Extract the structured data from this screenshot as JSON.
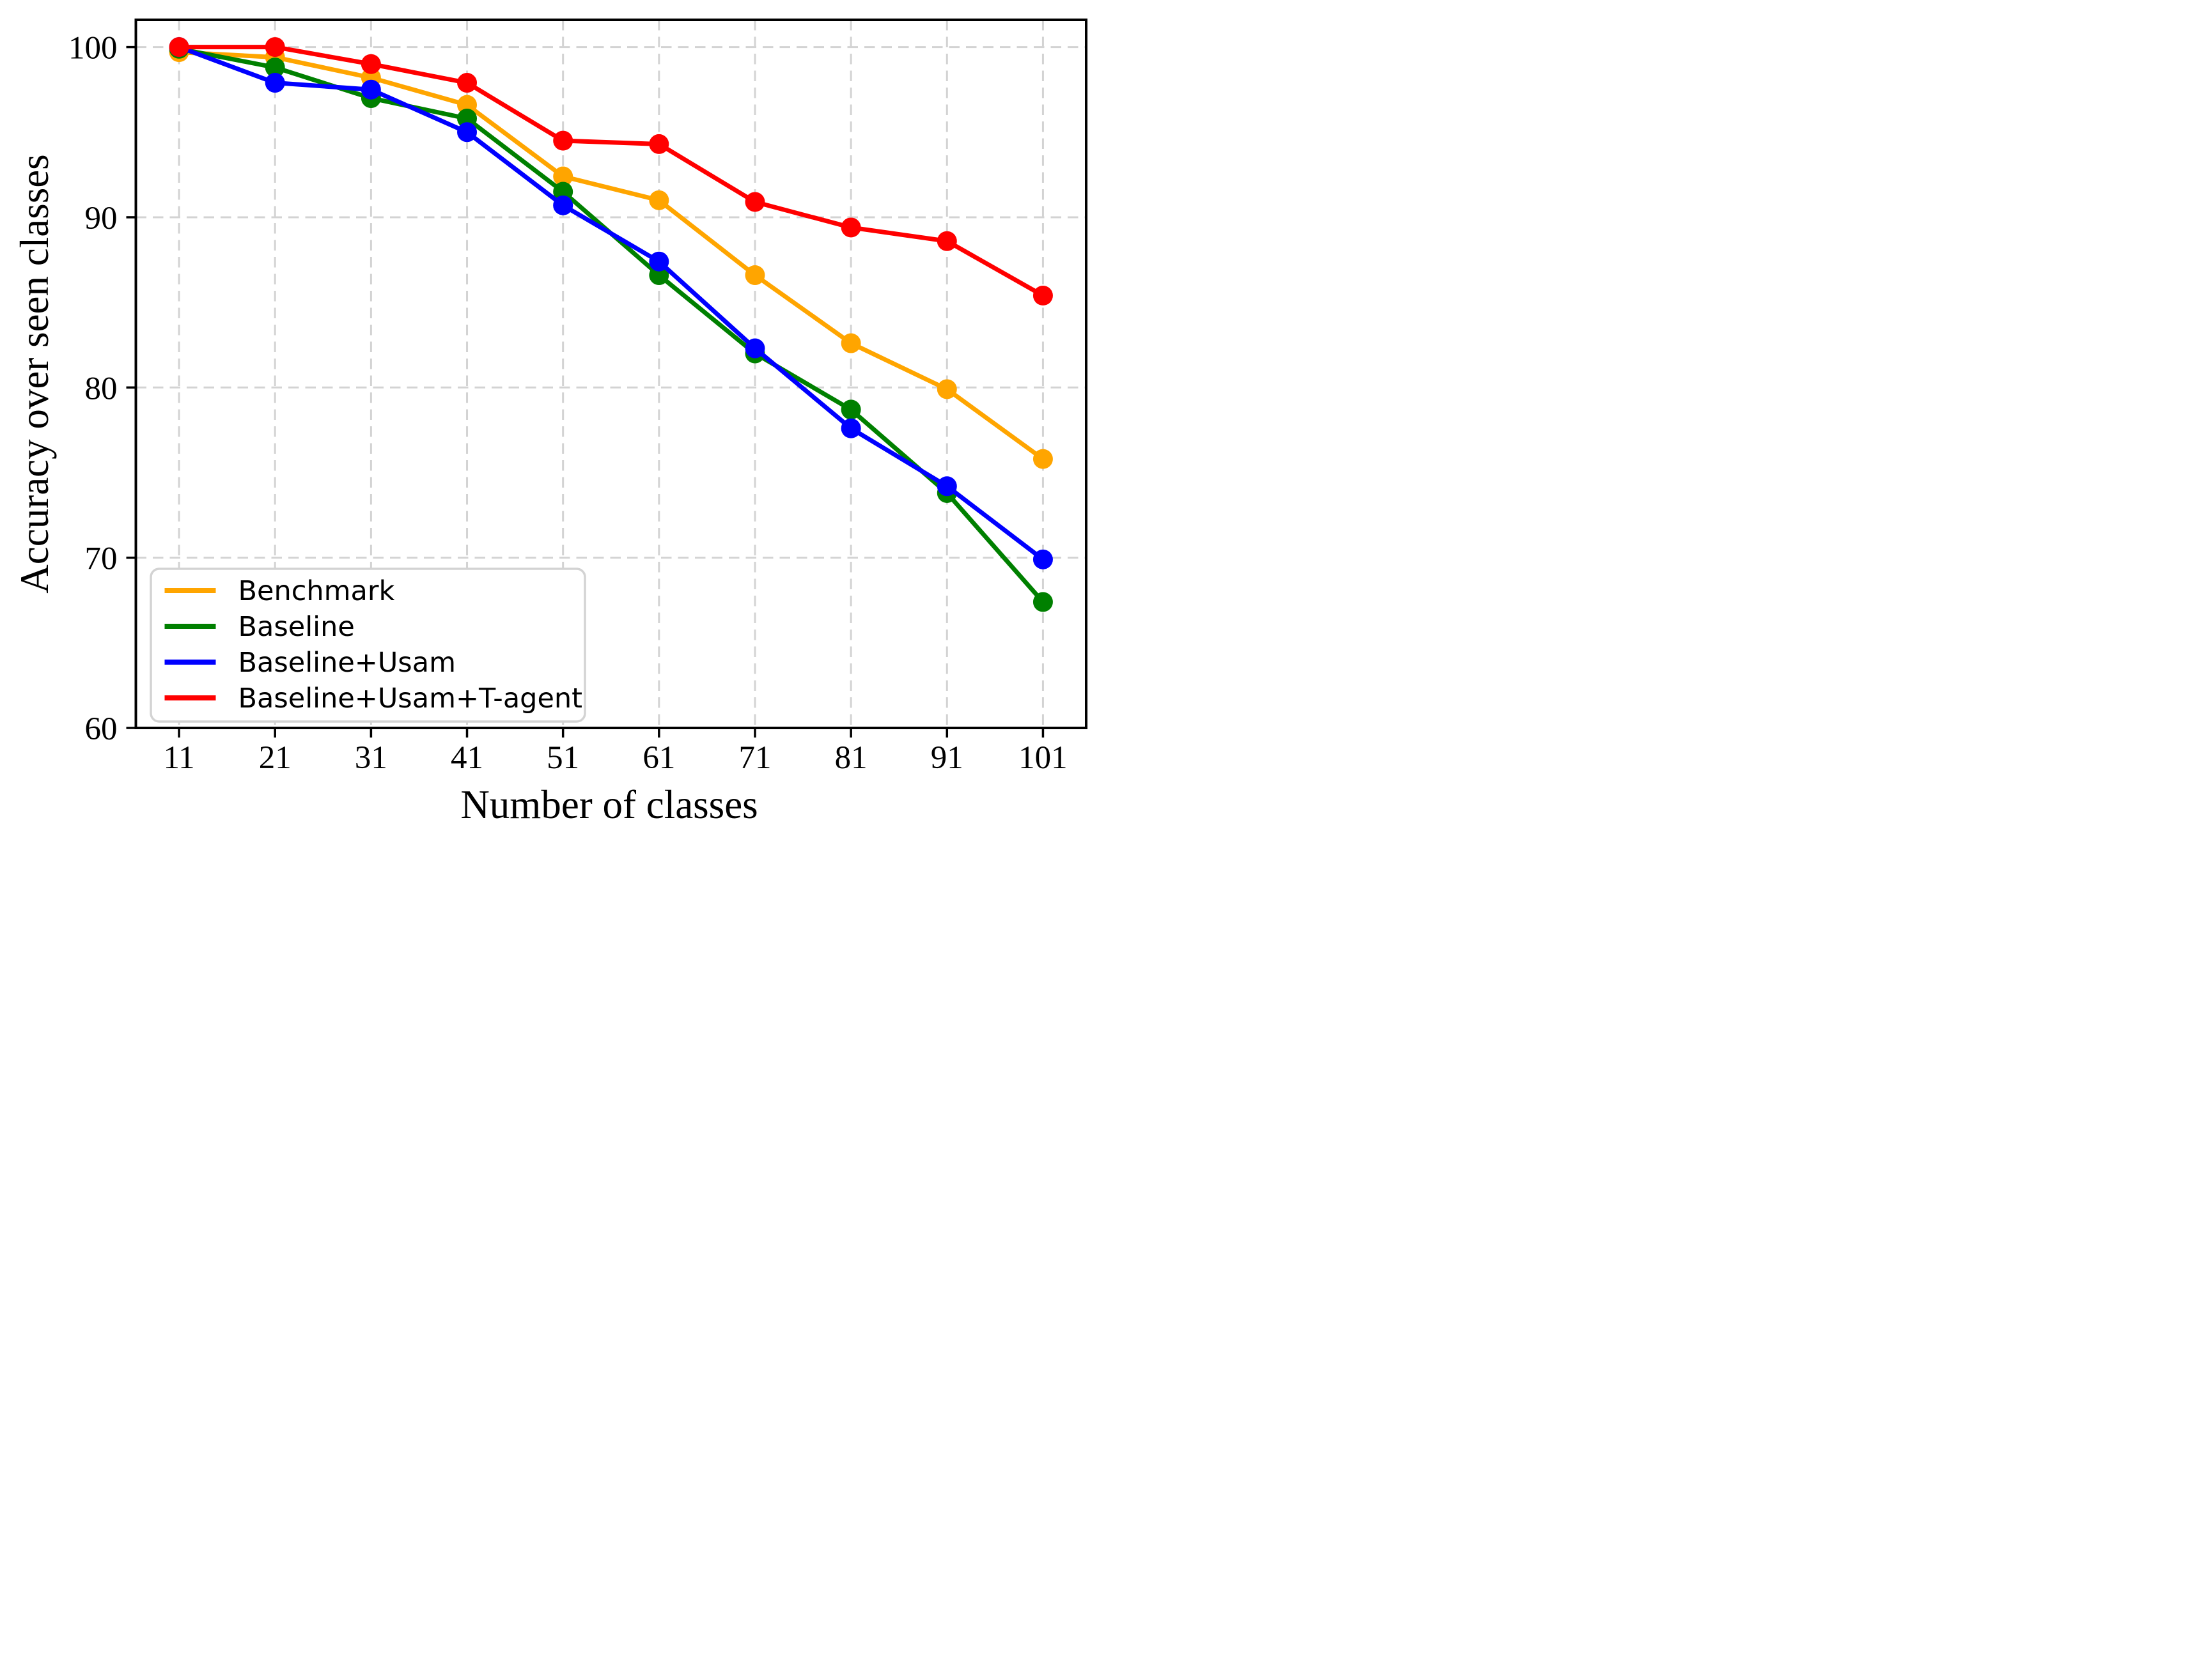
{
  "figure": {
    "background": "#FFFFFF"
  },
  "chart_data": {
    "type": "line",
    "title": "",
    "xlabel": "Number of classes",
    "ylabel": "Accuracy over seen classes",
    "x": [
      11,
      21,
      31,
      41,
      51,
      61,
      71,
      81,
      91,
      101
    ],
    "xticks": [
      11,
      21,
      31,
      41,
      51,
      61,
      71,
      81,
      91,
      101
    ],
    "yticks": [
      60,
      70,
      80,
      90,
      100
    ],
    "xlim": [
      6.5,
      105.5
    ],
    "ylim": [
      60,
      101.6
    ],
    "grid": true,
    "grid_style": "dashed",
    "grid_color": "#D3D3D3",
    "axis_color": "#000000",
    "legend_position": "lower-left",
    "series": [
      {
        "name": "Benchmark",
        "color": "#FFA500",
        "values": [
          99.7,
          99.4,
          98.2,
          96.6,
          92.4,
          91.0,
          86.6,
          82.6,
          79.9,
          75.8
        ]
      },
      {
        "name": "Baseline",
        "color": "#008000",
        "values": [
          99.9,
          98.8,
          97.0,
          95.8,
          91.5,
          86.6,
          82.0,
          78.7,
          73.8,
          67.4
        ]
      },
      {
        "name": "Baseline+Usam",
        "color": "#0000FF",
        "values": [
          100.0,
          97.9,
          97.5,
          95.0,
          90.7,
          87.4,
          82.3,
          77.6,
          74.2,
          69.9
        ]
      },
      {
        "name": "Baseline+Usam+T-agent",
        "color": "#FF0000",
        "values": [
          100.0,
          100.0,
          99.0,
          97.9,
          94.5,
          94.3,
          90.9,
          89.4,
          88.6,
          85.4
        ]
      }
    ]
  }
}
